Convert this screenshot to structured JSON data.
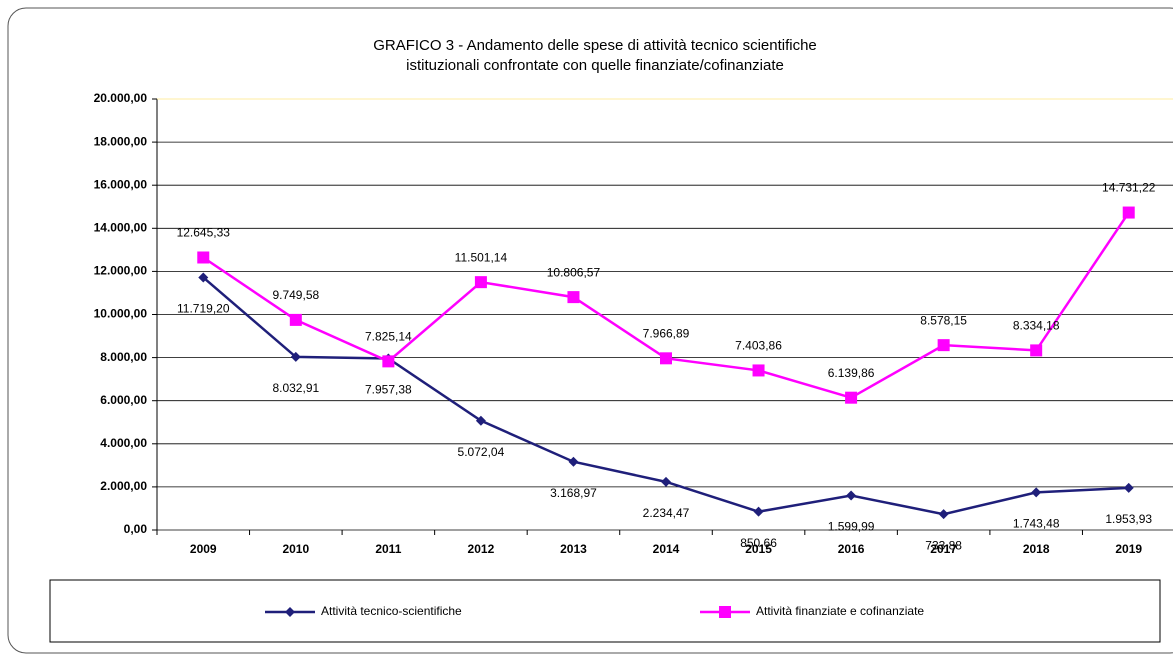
{
  "chart_data": {
    "type": "line",
    "title": [
      "GRAFICO 3 - Andamento delle spese di attività tecnico scientifiche",
      "istituzionali confrontate con quelle finanziate/cofinanziate"
    ],
    "categories": [
      "2009",
      "2010",
      "2011",
      "2012",
      "2013",
      "2014",
      "2015",
      "2016",
      "2017",
      "2018",
      "2019"
    ],
    "series": [
      {
        "name": "Attività tecnico-scientifiche",
        "color": "#1f1f7a",
        "marker": "diamond",
        "values": [
          11719.2,
          8032.91,
          7957.38,
          5072.04,
          3168.97,
          2234.47,
          850.66,
          1599.99,
          733.88,
          1743.48,
          1953.93
        ],
        "value_labels": [
          "11.719,20",
          "8.032,91",
          "7.957,38",
          "5.072,04",
          "3.168,97",
          "2.234,47",
          "850,66",
          "1.599,99",
          "733,88",
          "1.743,48",
          "1.953,93"
        ]
      },
      {
        "name": "Attività finanziate e cofinanziate",
        "color": "#ff00ff",
        "marker": "square",
        "values": [
          12645.33,
          9749.58,
          7825.14,
          11501.14,
          10806.57,
          7966.89,
          7403.86,
          6139.86,
          8578.15,
          8334.18,
          14731.22
        ],
        "value_labels": [
          "12.645,33",
          "9.749,58",
          "7.825,14",
          "11.501,14",
          "10.806,57",
          "7.966,89",
          "7.403,86",
          "6.139,86",
          "8.578,15",
          "8.334,18",
          "14.731,22"
        ]
      }
    ],
    "ylim": [
      0,
      20000
    ],
    "yticks": [
      {
        "value": 0,
        "label": "0,00"
      },
      {
        "value": 2000,
        "label": "2.000,00"
      },
      {
        "value": 4000,
        "label": "4.000,00"
      },
      {
        "value": 6000,
        "label": "6.000,00"
      },
      {
        "value": 8000,
        "label": "8.000,00"
      },
      {
        "value": 10000,
        "label": "10.000,00"
      },
      {
        "value": 12000,
        "label": "12.000,00"
      },
      {
        "value": 14000,
        "label": "14.000,00"
      },
      {
        "value": 16000,
        "label": "16.000,00"
      },
      {
        "value": 18000,
        "label": "18.000,00"
      },
      {
        "value": 20000,
        "label": "20.000,00"
      }
    ],
    "grid": true,
    "legend": "bottom"
  }
}
